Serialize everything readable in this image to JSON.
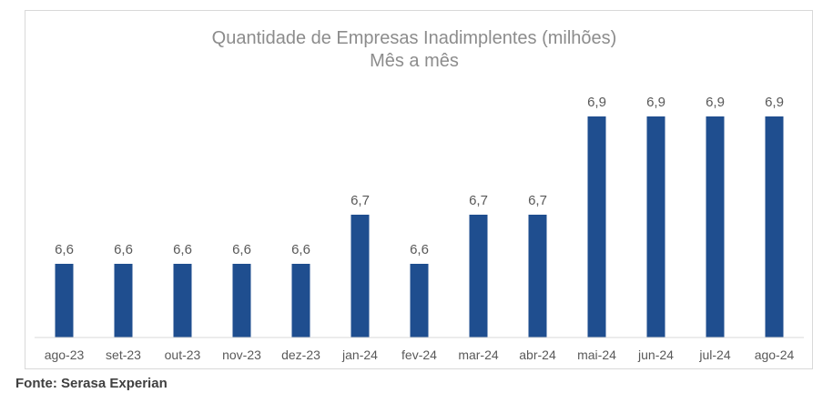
{
  "source": "Fonte: Serasa Experian",
  "colors": {
    "bar": "#1F4E8F",
    "axis": "#d9d9d9"
  },
  "chart_data": {
    "type": "bar",
    "title": "Quantidade de Empresas Inadimplentes (milhões)",
    "subtitle": "Mês a mês",
    "xlabel": "",
    "ylabel": "",
    "grid": false,
    "categories": [
      "ago-23",
      "set-23",
      "out-23",
      "nov-23",
      "dez-23",
      "jan-24",
      "fev-24",
      "mar-24",
      "abr-24",
      "mai-24",
      "jun-24",
      "jul-24",
      "ago-24"
    ],
    "values": [
      6.6,
      6.6,
      6.6,
      6.6,
      6.6,
      6.7,
      6.6,
      6.7,
      6.7,
      6.9,
      6.9,
      6.9,
      6.9
    ],
    "data_labels": [
      "6,6",
      "6,6",
      "6,6",
      "6,6",
      "6,6",
      "6,7",
      "6,6",
      "6,7",
      "6,7",
      "6,9",
      "6,9",
      "6,9",
      "6,9"
    ],
    "ylim": [
      6.45,
      6.9
    ]
  }
}
